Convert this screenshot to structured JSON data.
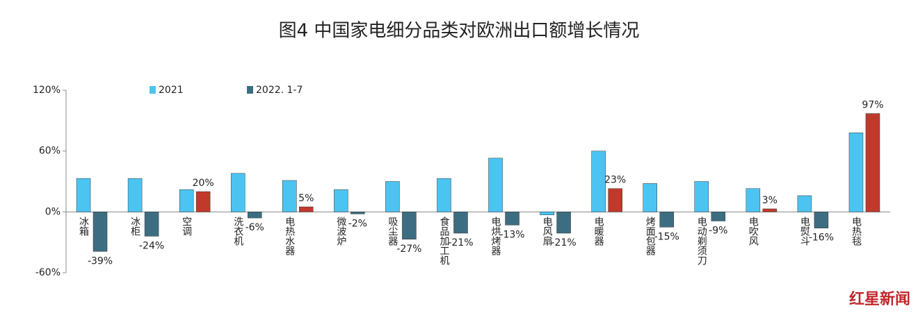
{
  "chart_data": {
    "type": "bar",
    "title": "图4  中国家电细分品类对欧洲出口额增长情况",
    "categories": [
      "冰箱",
      "冰柜",
      "空调",
      "洗衣机",
      "电热水器",
      "微波炉",
      "吸尘器",
      "食品加工机",
      "电烘烤器",
      "电风扇",
      "电暖器",
      "烤面包器",
      "电动剃须刀",
      "电吹风",
      "电熨斗",
      "电热毯"
    ],
    "series": [
      {
        "name": "2021",
        "color": "#4cc4f2",
        "values": [
          33,
          33,
          22,
          38,
          31,
          22,
          30,
          33,
          53,
          -3,
          60,
          28,
          30,
          23,
          16,
          78
        ]
      },
      {
        "name": "2022. 1-7",
        "color": "#3d6d80",
        "colors": [
          "#3d6d80",
          "#3d6d80",
          "#c0392b",
          "#3d6d80",
          "#c0392b",
          "#3d6d80",
          "#3d6d80",
          "#3d6d80",
          "#3d6d80",
          "#3d6d80",
          "#c0392b",
          "#3d6d80",
          "#3d6d80",
          "#c0392b",
          "#3d6d80",
          "#c0392b"
        ],
        "values": [
          -39,
          -24,
          20,
          -6,
          5,
          -2,
          -27,
          -21,
          -13,
          -21,
          23,
          -15,
          -9,
          3,
          -16,
          97
        ],
        "value_labels": [
          "-39%",
          "-24%",
          "20%",
          "-6%",
          "5%",
          "-2%",
          "-27%",
          "-21%",
          "-13%",
          "-21%",
          "23%",
          "-15%",
          "-9%",
          "3%",
          "-16%",
          "97%"
        ]
      }
    ],
    "ylim": [
      -60,
      120
    ],
    "yticks": [
      {
        "value": -60,
        "label": "-60%"
      },
      {
        "value": 0,
        "label": "0%"
      },
      {
        "value": 60,
        "label": "60%"
      },
      {
        "value": 120,
        "label": "120%"
      }
    ],
    "watermark": "红星新闻"
  }
}
